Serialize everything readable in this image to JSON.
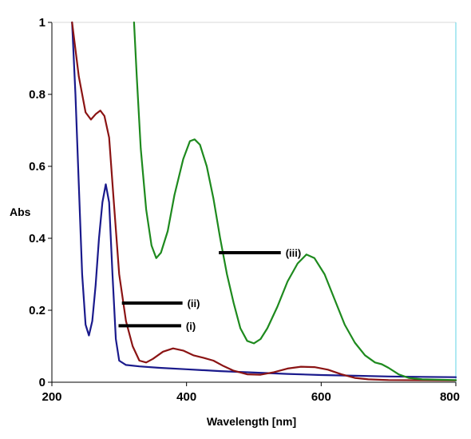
{
  "chart_data": {
    "type": "line",
    "xlabel": "Wavelength [nm]",
    "ylabel": "Abs",
    "xlim": [
      200,
      800
    ],
    "ylim": [
      0,
      1
    ],
    "x_ticks": [
      "200",
      "400",
      "600",
      "800"
    ],
    "y_ticks": [
      "0",
      "0.2",
      "0.4",
      "0.6",
      "0.8",
      "1"
    ],
    "grid": false,
    "series": [
      {
        "color": "#1a1a8c",
        "points": [
          [
            230,
            1.0
          ],
          [
            235,
            0.8
          ],
          [
            240,
            0.55
          ],
          [
            245,
            0.3
          ],
          [
            250,
            0.16
          ],
          [
            255,
            0.13
          ],
          [
            260,
            0.17
          ],
          [
            265,
            0.27
          ],
          [
            270,
            0.4
          ],
          [
            275,
            0.5
          ],
          [
            280,
            0.55
          ],
          [
            285,
            0.5
          ],
          [
            290,
            0.3
          ],
          [
            295,
            0.12
          ],
          [
            300,
            0.06
          ],
          [
            310,
            0.048
          ],
          [
            330,
            0.044
          ],
          [
            360,
            0.04
          ],
          [
            400,
            0.036
          ],
          [
            450,
            0.031
          ],
          [
            500,
            0.027
          ],
          [
            550,
            0.023
          ],
          [
            600,
            0.02
          ],
          [
            650,
            0.018
          ],
          [
            700,
            0.016
          ],
          [
            750,
            0.015
          ],
          [
            800,
            0.014
          ]
        ]
      },
      {
        "color": "#8b1414",
        "points": [
          [
            230,
            1.0
          ],
          [
            240,
            0.85
          ],
          [
            250,
            0.75
          ],
          [
            258,
            0.73
          ],
          [
            265,
            0.745
          ],
          [
            272,
            0.755
          ],
          [
            278,
            0.74
          ],
          [
            285,
            0.68
          ],
          [
            292,
            0.5
          ],
          [
            300,
            0.3
          ],
          [
            310,
            0.17
          ],
          [
            320,
            0.1
          ],
          [
            330,
            0.06
          ],
          [
            340,
            0.055
          ],
          [
            350,
            0.065
          ],
          [
            365,
            0.085
          ],
          [
            380,
            0.094
          ],
          [
            395,
            0.088
          ],
          [
            410,
            0.075
          ],
          [
            425,
            0.068
          ],
          [
            440,
            0.06
          ],
          [
            455,
            0.045
          ],
          [
            470,
            0.032
          ],
          [
            490,
            0.022
          ],
          [
            510,
            0.021
          ],
          [
            530,
            0.028
          ],
          [
            550,
            0.038
          ],
          [
            570,
            0.043
          ],
          [
            590,
            0.042
          ],
          [
            610,
            0.035
          ],
          [
            630,
            0.022
          ],
          [
            650,
            0.012
          ],
          [
            670,
            0.008
          ],
          [
            700,
            0.006
          ],
          [
            800,
            0.005
          ]
        ]
      },
      {
        "color": "#1e8a1e",
        "points": [
          [
            322,
            1.0
          ],
          [
            326,
            0.85
          ],
          [
            332,
            0.65
          ],
          [
            340,
            0.48
          ],
          [
            348,
            0.38
          ],
          [
            355,
            0.345
          ],
          [
            362,
            0.36
          ],
          [
            372,
            0.42
          ],
          [
            382,
            0.52
          ],
          [
            395,
            0.62
          ],
          [
            405,
            0.67
          ],
          [
            412,
            0.675
          ],
          [
            420,
            0.66
          ],
          [
            430,
            0.6
          ],
          [
            440,
            0.51
          ],
          [
            450,
            0.4
          ],
          [
            460,
            0.3
          ],
          [
            470,
            0.22
          ],
          [
            480,
            0.15
          ],
          [
            490,
            0.115
          ],
          [
            500,
            0.108
          ],
          [
            510,
            0.12
          ],
          [
            520,
            0.15
          ],
          [
            535,
            0.21
          ],
          [
            550,
            0.28
          ],
          [
            565,
            0.33
          ],
          [
            578,
            0.355
          ],
          [
            590,
            0.345
          ],
          [
            605,
            0.3
          ],
          [
            620,
            0.23
          ],
          [
            635,
            0.16
          ],
          [
            650,
            0.11
          ],
          [
            665,
            0.075
          ],
          [
            680,
            0.055
          ],
          [
            690,
            0.05
          ],
          [
            700,
            0.04
          ],
          [
            715,
            0.022
          ],
          [
            730,
            0.012
          ],
          [
            750,
            0.008
          ],
          [
            800,
            0.006
          ]
        ]
      }
    ],
    "annotations": [
      {
        "text": "(i)",
        "x": 299,
        "y": 0.157,
        "x_end": 392
      },
      {
        "text": "(ii)",
        "x": 304,
        "y": 0.22,
        "x_end": 394
      },
      {
        "text": "(iii)",
        "x": 448,
        "y": 0.36,
        "x_end": 540
      }
    ]
  }
}
